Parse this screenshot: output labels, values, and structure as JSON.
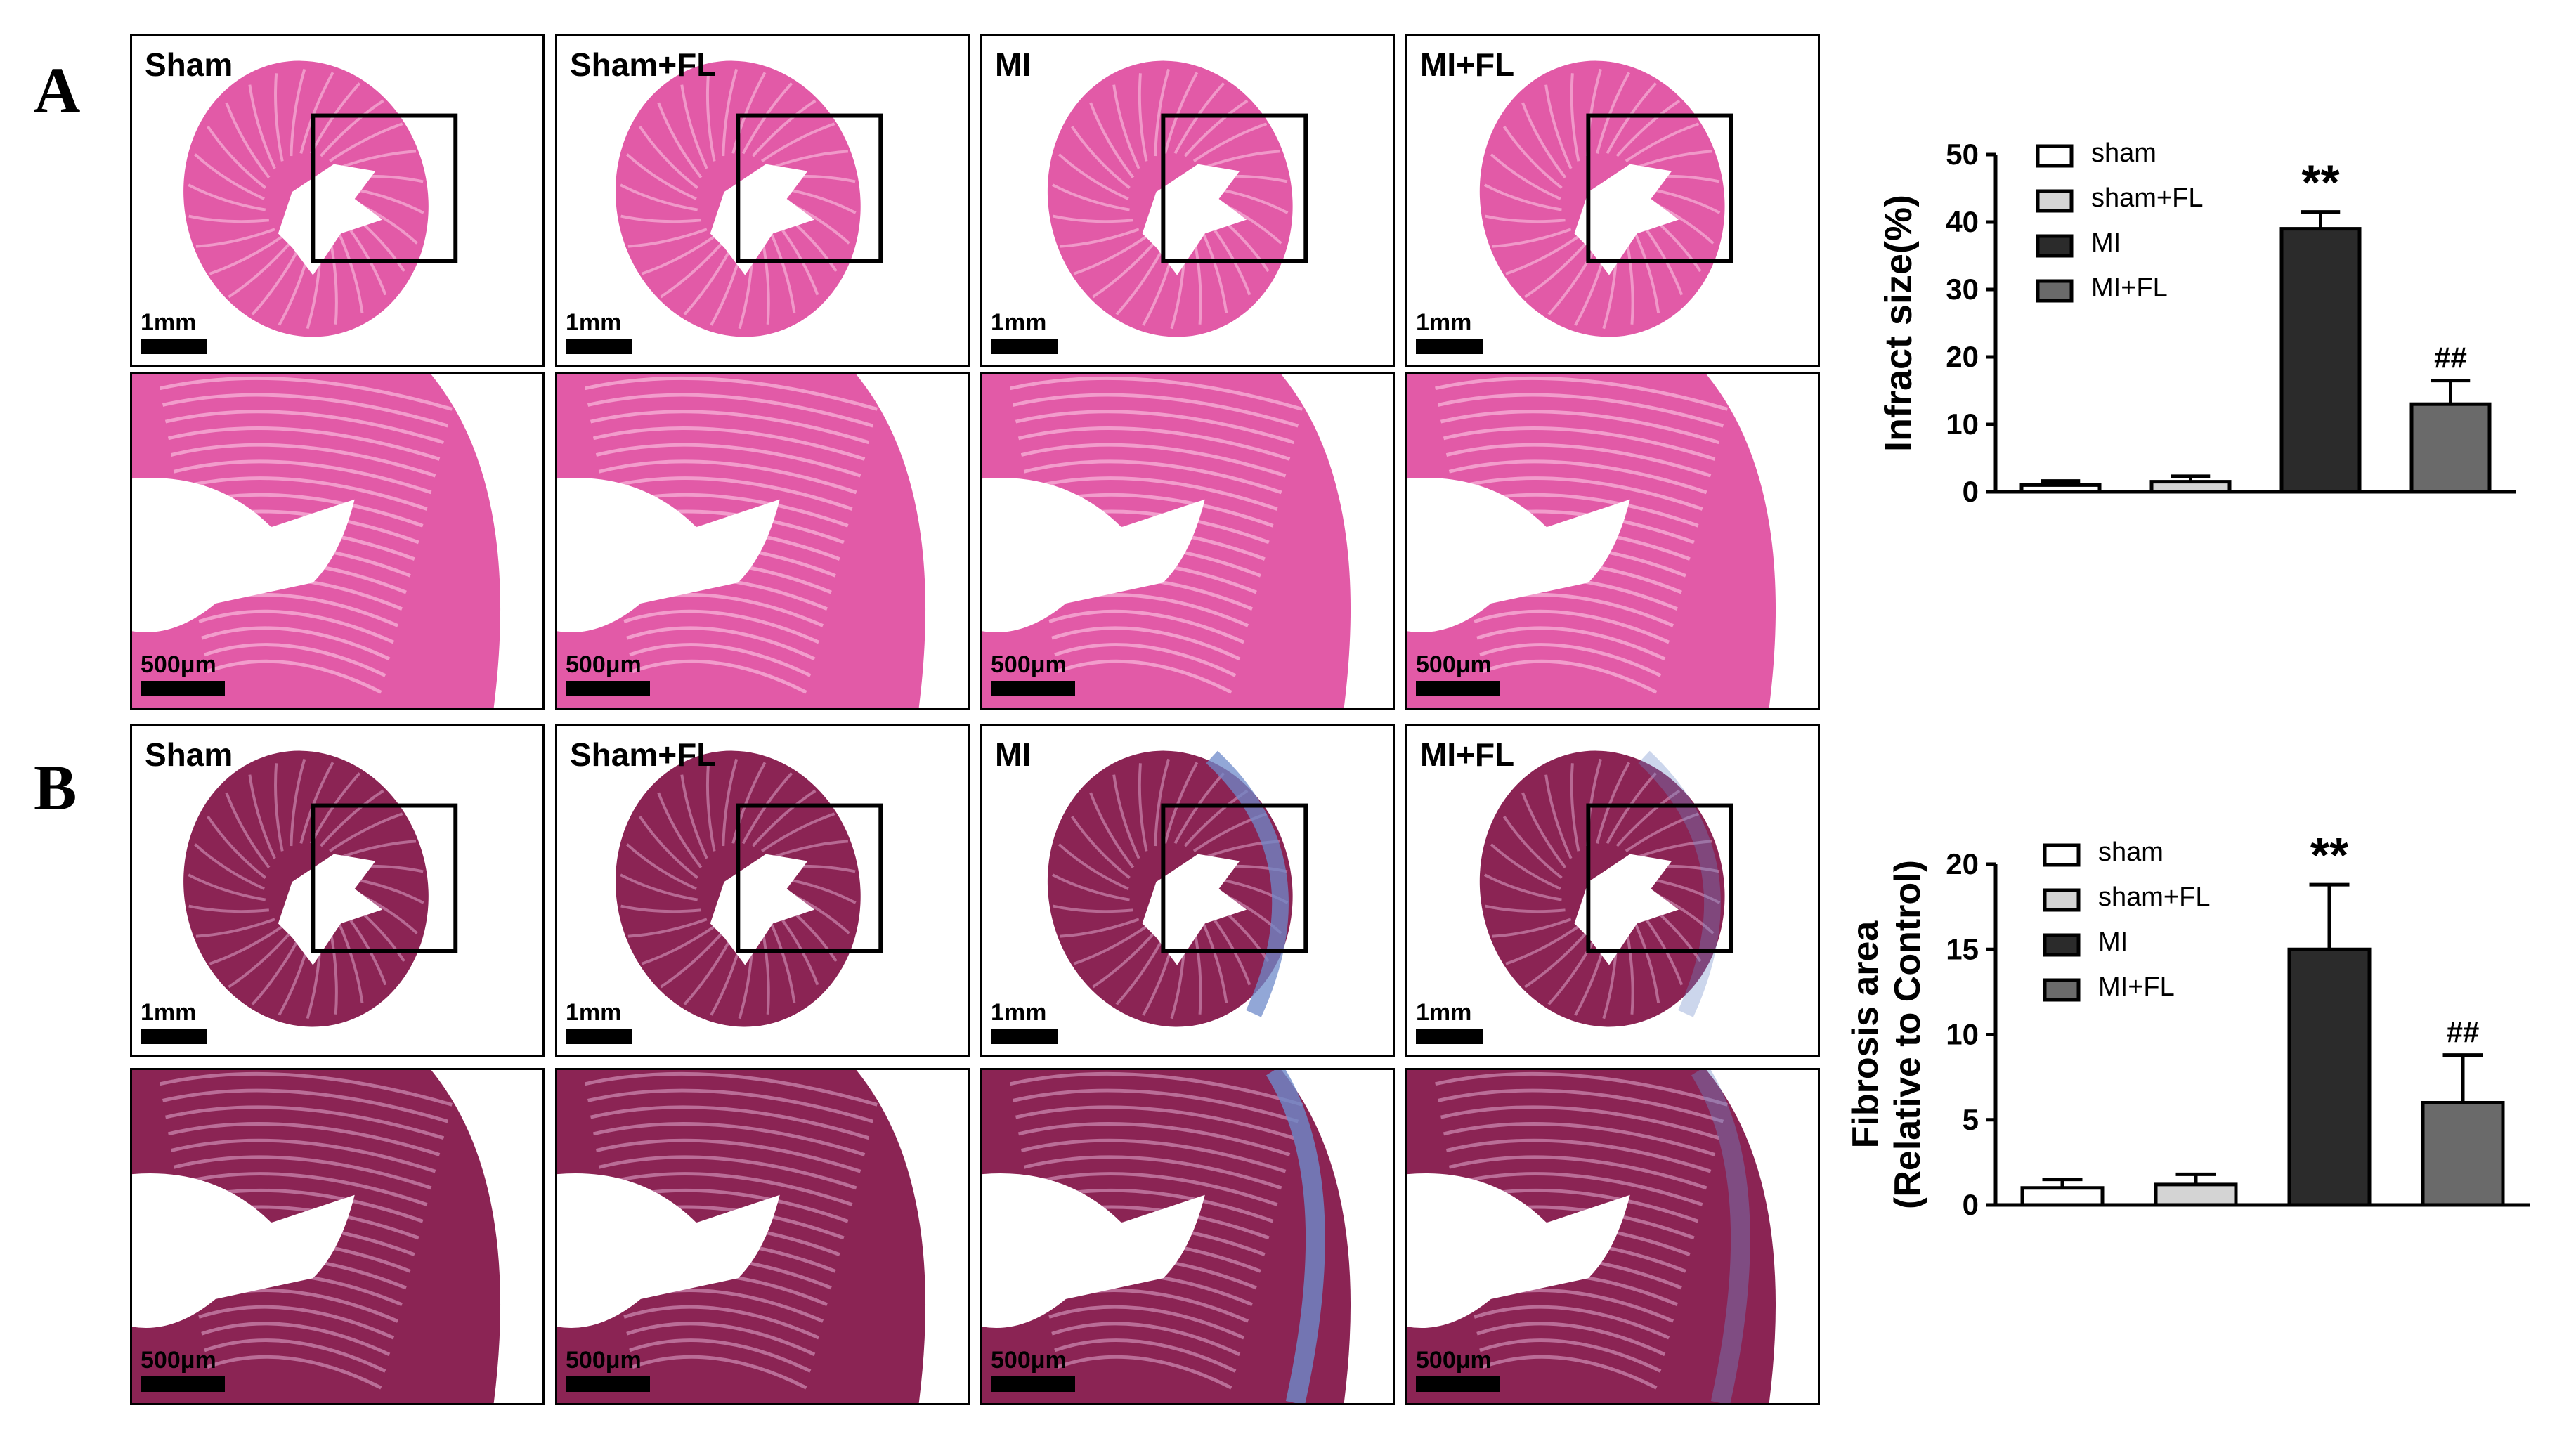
{
  "panel_a": {
    "letter": "A",
    "overview_row": [
      {
        "label": "Sham",
        "scale": "1mm"
      },
      {
        "label": "Sham+FL",
        "scale": "1mm"
      },
      {
        "label": "MI",
        "scale": "1mm"
      },
      {
        "label": "MI+FL",
        "scale": "1mm"
      }
    ],
    "zoom_row": [
      {
        "scale": "500μm"
      },
      {
        "scale": "500μm"
      },
      {
        "scale": "500μm"
      },
      {
        "scale": "500μm"
      }
    ],
    "stain_colors": {
      "tissue": "#e25aa7",
      "fiber": "#f4a8d2",
      "background": "#ffffff"
    }
  },
  "panel_b": {
    "letter": "B",
    "overview_row": [
      {
        "label": "Sham",
        "scale": "1mm"
      },
      {
        "label": "Sham+FL",
        "scale": "1mm"
      },
      {
        "label": "MI",
        "scale": "1mm"
      },
      {
        "label": "MI+FL",
        "scale": "1mm"
      }
    ],
    "zoom_row": [
      {
        "scale": "500μm"
      },
      {
        "scale": "500μm"
      },
      {
        "scale": "500μm"
      },
      {
        "scale": "500μm"
      }
    ],
    "stain_colors": {
      "tissue": "#8b2454",
      "fiber": "#c27aa3",
      "fibrosis": "#6d89c9",
      "background": "#ffffff"
    }
  },
  "chart_data": [
    {
      "type": "bar",
      "categories": [
        "sham",
        "sham+FL",
        "MI",
        "MI+FL"
      ],
      "values": [
        1.0,
        1.5,
        39.0,
        13.0
      ],
      "errors": [
        0.6,
        0.8,
        2.5,
        3.5
      ],
      "annotations": [
        "",
        "",
        "**",
        "##"
      ],
      "title": "",
      "xlabel": "",
      "ylabel": "Infract size(%)",
      "ylim": [
        0,
        50
      ],
      "yticks": [
        0,
        10,
        20,
        30,
        40,
        50
      ],
      "colors": [
        "#ffffff",
        "#d4d4d4",
        "#2b2b2b",
        "#6a6a6a"
      ],
      "legend": [
        "sham",
        "sham+FL",
        "MI",
        "MI+FL"
      ],
      "legend_position": "top-right",
      "grid": false
    },
    {
      "type": "bar",
      "categories": [
        "sham",
        "sham+FL",
        "MI",
        "MI+FL"
      ],
      "values": [
        1.0,
        1.2,
        15.0,
        6.0
      ],
      "errors": [
        0.5,
        0.6,
        3.8,
        2.8
      ],
      "annotations": [
        "",
        "",
        "**",
        "##"
      ],
      "title": "",
      "xlabel": "",
      "ylabel": "Fibrosis area",
      "ylabel2": "(Relative to Control)",
      "ylim": [
        0,
        20
      ],
      "yticks": [
        0,
        5,
        10,
        15,
        20
      ],
      "colors": [
        "#ffffff",
        "#d4d4d4",
        "#2b2b2b",
        "#6a6a6a"
      ],
      "legend": [
        "sham",
        "sham+FL",
        "MI",
        "MI+FL"
      ],
      "legend_position": "top-right",
      "grid": false
    }
  ]
}
